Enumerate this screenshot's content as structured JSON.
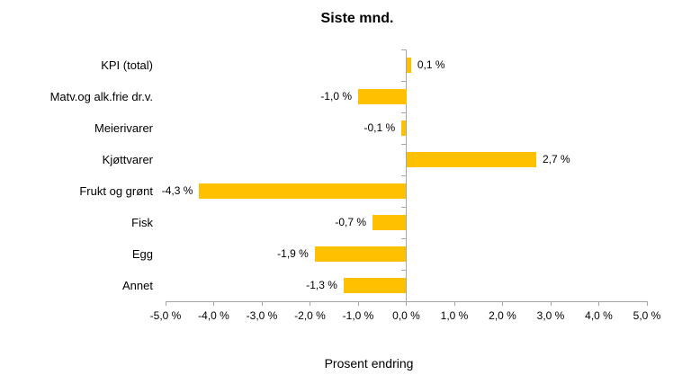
{
  "chart_data": {
    "type": "bar",
    "orientation": "horizontal",
    "title": "Siste mnd.",
    "xlabel": "Prosent endring",
    "ylabel": "",
    "categories": [
      "KPI (total)",
      "Matv.og alk.frie dr.v.",
      "Meierivarer",
      "Kjøttvarer",
      "Frukt og grønt",
      "Fisk",
      "Egg",
      "Annet"
    ],
    "values": [
      0.1,
      -1.0,
      -0.1,
      2.7,
      -4.3,
      -0.7,
      -1.9,
      -1.3
    ],
    "value_labels": [
      "0,1 %",
      "-1,0 %",
      "-0,1 %",
      "2,7 %",
      "-4,3 %",
      "-0,7 %",
      "-1,9 %",
      "-1,3 %"
    ],
    "xlim": [
      -5,
      5
    ],
    "x_tick_values": [
      -5,
      -4,
      -3,
      -2,
      -1,
      0,
      1,
      2,
      3,
      4,
      5
    ],
    "x_tick_labels": [
      "-5,0 %",
      "-4,0 %",
      "-3,0 %",
      "-2,0 %",
      "-1,0 %",
      "0,0 %",
      "1,0 %",
      "2,0 %",
      "3,0 %",
      "4,0 %",
      "5,0 %"
    ],
    "grid": false,
    "legend": false,
    "bar_color": "#FFC000",
    "axis_color": "#A6A6A6",
    "text_color": "#000000"
  }
}
